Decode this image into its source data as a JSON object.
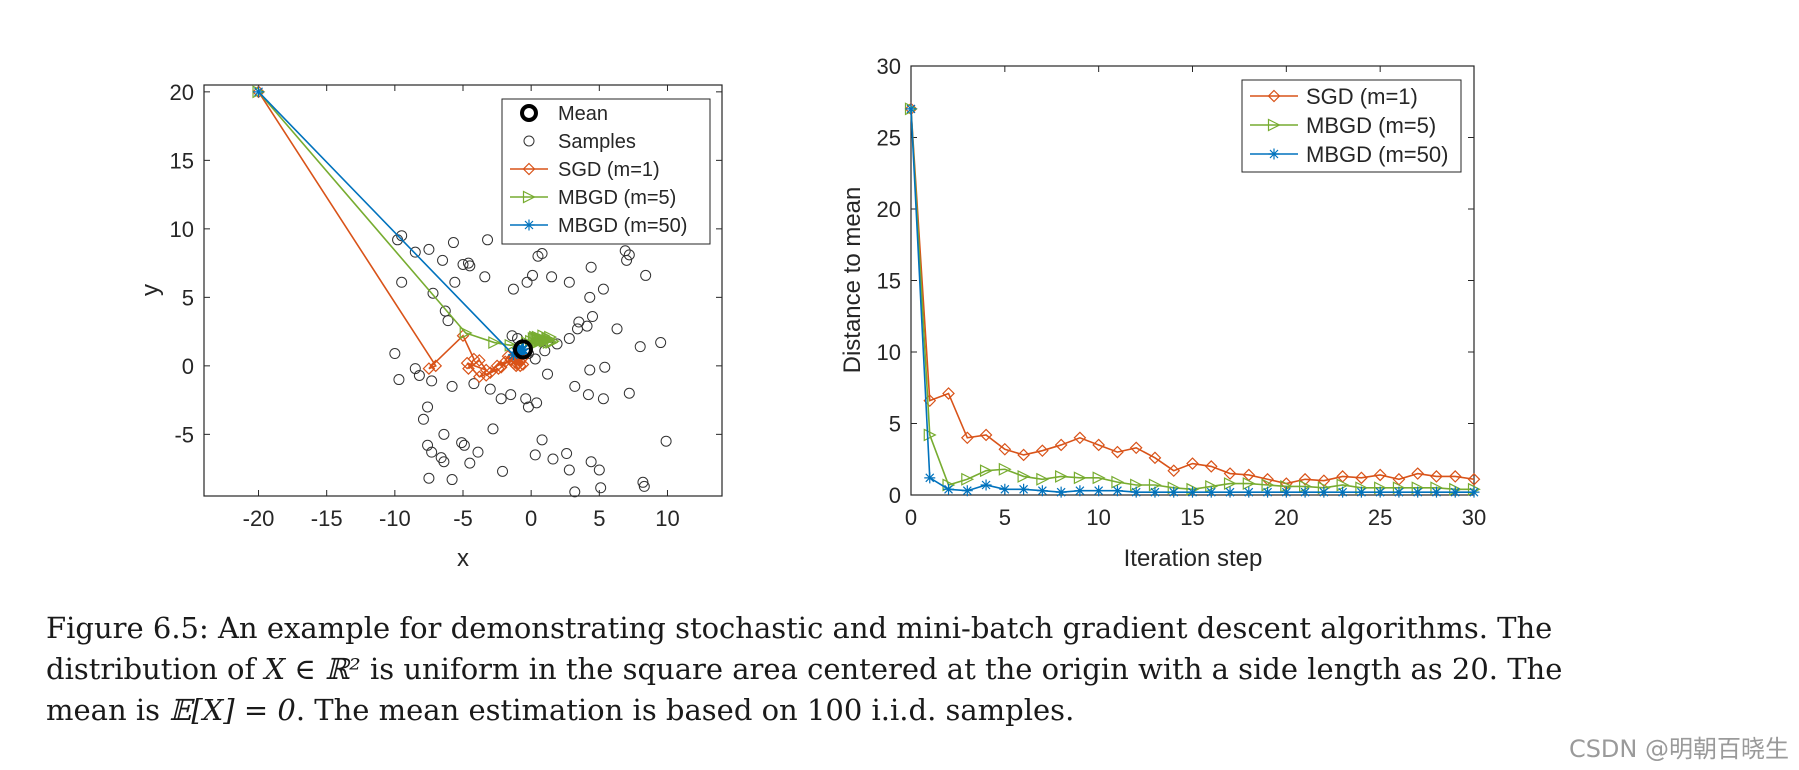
{
  "colors": {
    "sgd": "#D95319",
    "mbgd5": "#77AC30",
    "mbgd50": "#0072BD",
    "mean": "#000000",
    "samples": "#333333"
  },
  "chart_data": [
    {
      "type": "scatter",
      "title": "",
      "xlabel": "x",
      "ylabel": "y",
      "xlim": [
        -24,
        14
      ],
      "ylim": [
        -9.5,
        20.5
      ],
      "xticks": [
        -20,
        -15,
        -10,
        -5,
        0,
        5,
        10
      ],
      "yticks": [
        -5,
        0,
        5,
        10,
        15,
        20
      ],
      "legend": {
        "placement": "top-right",
        "entries": [
          "Mean",
          "Samples",
          "SGD (m=1)",
          "MBGD (m=5)",
          "MBGD (m=50)"
        ]
      },
      "mean": {
        "x": -0.6,
        "y": 1.2
      },
      "samples": [
        [
          -9.8,
          9.2
        ],
        [
          -9.5,
          9.5
        ],
        [
          -8.5,
          8.3
        ],
        [
          -7.5,
          8.5
        ],
        [
          -6.5,
          7.7
        ],
        [
          -5.7,
          9.0
        ],
        [
          -5.0,
          7.4
        ],
        [
          -4.6,
          7.5
        ],
        [
          -4.5,
          7.3
        ],
        [
          -3.2,
          9.2
        ],
        [
          -9.5,
          6.1
        ],
        [
          -7.2,
          5.3
        ],
        [
          -5.6,
          6.1
        ],
        [
          -6.3,
          4.0
        ],
        [
          -6.1,
          3.3
        ],
        [
          -3.4,
          6.5
        ],
        [
          -1.3,
          5.6
        ],
        [
          -0.3,
          6.1
        ],
        [
          0.1,
          6.6
        ],
        [
          0.5,
          8.0
        ],
        [
          0.8,
          8.2
        ],
        [
          1.5,
          6.5
        ],
        [
          2.8,
          6.1
        ],
        [
          4.3,
          5.0
        ],
        [
          4.4,
          7.2
        ],
        [
          5.3,
          5.6
        ],
        [
          4.5,
          3.6
        ],
        [
          3.5,
          3.2
        ],
        [
          2.8,
          2.0
        ],
        [
          3.4,
          2.7
        ],
        [
          4.1,
          2.9
        ],
        [
          6.3,
          2.7
        ],
        [
          7.0,
          7.7
        ],
        [
          7.2,
          8.1
        ],
        [
          6.9,
          8.4
        ],
        [
          8.4,
          6.6
        ],
        [
          8.0,
          1.4
        ],
        [
          9.5,
          1.7
        ],
        [
          -10.0,
          0.9
        ],
        [
          -9.7,
          -1.0
        ],
        [
          -8.5,
          -0.2
        ],
        [
          -8.2,
          -0.7
        ],
        [
          -7.3,
          -1.1
        ],
        [
          -5.8,
          -1.5
        ],
        [
          -4.2,
          -1.3
        ],
        [
          -3.0,
          -1.7
        ],
        [
          -2.2,
          -2.4
        ],
        [
          -1.5,
          -2.1
        ],
        [
          -0.4,
          -2.4
        ],
        [
          0.4,
          -2.7
        ],
        [
          1.2,
          -0.6
        ],
        [
          3.2,
          -1.5
        ],
        [
          4.3,
          -0.3
        ],
        [
          4.2,
          -2.1
        ],
        [
          5.4,
          -0.1
        ],
        [
          5.3,
          -2.4
        ],
        [
          7.2,
          -2.0
        ],
        [
          -7.9,
          -3.9
        ],
        [
          -7.6,
          -3.0
        ],
        [
          -6.4,
          -5.0
        ],
        [
          -6.6,
          -6.7
        ],
        [
          -6.4,
          -7.0
        ],
        [
          -7.6,
          -5.8
        ],
        [
          -7.3,
          -6.3
        ],
        [
          -5.1,
          -5.6
        ],
        [
          -4.9,
          -5.8
        ],
        [
          -3.9,
          -6.3
        ],
        [
          -4.5,
          -7.1
        ],
        [
          -5.8,
          -8.3
        ],
        [
          -7.5,
          -8.2
        ],
        [
          -2.8,
          -4.6
        ],
        [
          -0.2,
          -3.0
        ],
        [
          0.8,
          -5.4
        ],
        [
          0.3,
          -6.5
        ],
        [
          1.6,
          -6.8
        ],
        [
          2.6,
          -6.4
        ],
        [
          2.8,
          -7.6
        ],
        [
          3.2,
          -9.2
        ],
        [
          4.4,
          -7.0
        ],
        [
          5.0,
          -7.6
        ],
        [
          5.1,
          -8.9
        ],
        [
          8.2,
          -8.5
        ],
        [
          8.3,
          -8.8
        ],
        [
          9.9,
          -5.5
        ],
        [
          -2.1,
          -7.7
        ],
        [
          -1.4,
          2.2
        ],
        [
          -1.0,
          2.0
        ],
        [
          -0.2,
          0.9
        ],
        [
          0.3,
          0.5
        ],
        [
          1.0,
          1.1
        ],
        [
          1.9,
          1.6
        ]
      ],
      "series": [
        {
          "name": "SGD (m=1)",
          "marker": "diamond",
          "x": [
            -20,
            -7.0,
            -7.5,
            -5.0,
            -4.2,
            -4.6,
            -3.8,
            -3.3,
            -4.7,
            -3.8,
            -3.0,
            -2.4,
            -3.3,
            -2.5,
            -1.9,
            -2.2,
            -1.5,
            -1.1,
            -1.7,
            -0.9,
            -1.3,
            -0.6,
            -1.2,
            -0.8,
            -1.5,
            -1.0,
            -0.7,
            -1.3,
            -0.6,
            -0.8,
            -0.7
          ],
          "y": [
            20,
            0.0,
            -0.2,
            2.2,
            0.5,
            -0.2,
            0.4,
            -0.3,
            0.2,
            -0.8,
            -0.5,
            -0.2,
            -0.7,
            0.0,
            0.3,
            -0.1,
            0.5,
            0.0,
            0.7,
            0.2,
            0.6,
            0.1,
            0.5,
            0.0,
            0.4,
            0.1,
            0.5,
            0.2,
            0.6,
            0.3,
            0.5
          ]
        },
        {
          "name": "MBGD (m=5)",
          "marker": "triangle-right",
          "x": [
            -20,
            -4.8,
            -2.7,
            -1.5,
            0.0,
            0.8,
            0.2,
            -0.3,
            0.5,
            1.2,
            0.7,
            1.5,
            0.8,
            0.3,
            1.0,
            0.5,
            1.3,
            0.6,
            0.9,
            1.6,
            0.4,
            1.1,
            0.7,
            1.4,
            0.5,
            1.0,
            1.2,
            0.6,
            0.8,
            0.4,
            0.7
          ],
          "y": [
            20,
            2.4,
            1.7,
            1.5,
            1.8,
            1.9,
            2.0,
            1.7,
            2.1,
            1.9,
            2.0,
            1.7,
            1.9,
            2.1,
            1.8,
            2.0,
            1.7,
            1.9,
            2.2,
            1.8,
            2.0,
            1.8,
            1.9,
            2.1,
            1.7,
            1.9,
            2.0,
            1.8,
            1.9,
            2.0,
            1.8
          ]
        },
        {
          "name": "MBGD (m=50)",
          "marker": "asterisk",
          "x": [
            -20,
            -1.3,
            -1.1,
            -1.0,
            -0.9,
            -0.8,
            -0.75,
            -0.7,
            -0.7,
            -0.65,
            -0.65,
            -0.6,
            -0.6,
            -0.6,
            -0.6,
            -0.6,
            -0.6,
            -0.6,
            -0.6,
            -0.6,
            -0.6,
            -0.6,
            -0.6,
            -0.6,
            -0.6,
            -0.6,
            -0.6,
            -0.6,
            -0.6,
            -0.6,
            -0.6
          ],
          "y": [
            20,
            0.8,
            1.0,
            1.0,
            1.1,
            1.1,
            1.1,
            1.15,
            1.15,
            1.2,
            1.2,
            1.2,
            1.2,
            1.2,
            1.2,
            1.2,
            1.2,
            1.2,
            1.2,
            1.2,
            1.2,
            1.2,
            1.2,
            1.2,
            1.2,
            1.2,
            1.2,
            1.2,
            1.2,
            1.2,
            1.2
          ]
        }
      ]
    },
    {
      "type": "line",
      "title": "",
      "xlabel": "Iteration step",
      "ylabel": "Distance to mean",
      "xlim": [
        0,
        30
      ],
      "ylim": [
        0,
        30
      ],
      "xticks": [
        0,
        5,
        10,
        15,
        20,
        25,
        30
      ],
      "yticks": [
        0,
        5,
        10,
        15,
        20,
        25,
        30
      ],
      "legend": {
        "placement": "top-right",
        "entries": [
          "SGD (m=1)",
          "MBGD (m=5)",
          "MBGD (m=50)"
        ]
      },
      "x": [
        0,
        1,
        2,
        3,
        4,
        5,
        6,
        7,
        8,
        9,
        10,
        11,
        12,
        13,
        14,
        15,
        16,
        17,
        18,
        19,
        20,
        21,
        22,
        23,
        24,
        25,
        26,
        27,
        28,
        29,
        30
      ],
      "series": [
        {
          "name": "SGD (m=1)",
          "marker": "diamond",
          "values": [
            27.0,
            6.6,
            7.1,
            4.0,
            4.2,
            3.2,
            2.8,
            3.1,
            3.5,
            4.0,
            3.5,
            3.0,
            3.3,
            2.6,
            1.7,
            2.2,
            2.0,
            1.5,
            1.4,
            1.1,
            0.8,
            1.1,
            1.0,
            1.3,
            1.2,
            1.4,
            1.1,
            1.5,
            1.3,
            1.3,
            1.1
          ]
        },
        {
          "name": "MBGD (m=5)",
          "marker": "triangle-right",
          "values": [
            27.0,
            4.2,
            0.7,
            1.1,
            1.7,
            1.8,
            1.3,
            1.1,
            1.3,
            1.2,
            1.2,
            0.9,
            0.7,
            0.7,
            0.5,
            0.4,
            0.6,
            0.8,
            0.8,
            0.7,
            0.6,
            0.6,
            0.5,
            0.7,
            0.5,
            0.5,
            0.5,
            0.5,
            0.5,
            0.4,
            0.4
          ]
        },
        {
          "name": "MBGD (m=50)",
          "marker": "asterisk",
          "values": [
            27.0,
            1.2,
            0.4,
            0.3,
            0.7,
            0.4,
            0.4,
            0.3,
            0.2,
            0.3,
            0.3,
            0.3,
            0.2,
            0.2,
            0.2,
            0.2,
            0.2,
            0.2,
            0.2,
            0.2,
            0.2,
            0.2,
            0.2,
            0.2,
            0.2,
            0.2,
            0.2,
            0.2,
            0.2,
            0.2,
            0.2
          ]
        }
      ]
    }
  ],
  "caption": {
    "prefix": "Figure 6.5: An example for demonstrating stochastic and mini-batch gradient descent algorithms. The distribution of ",
    "math1": "X ∈ ℝ²",
    "middle": " is uniform in the square area centered at the origin with a side length as 20. The mean is ",
    "math2": "𝔼[X] = 0",
    "suffix": ". The mean estimation is based on 100 i.i.d. samples."
  },
  "watermark": "CSDN @明朝百晓生"
}
